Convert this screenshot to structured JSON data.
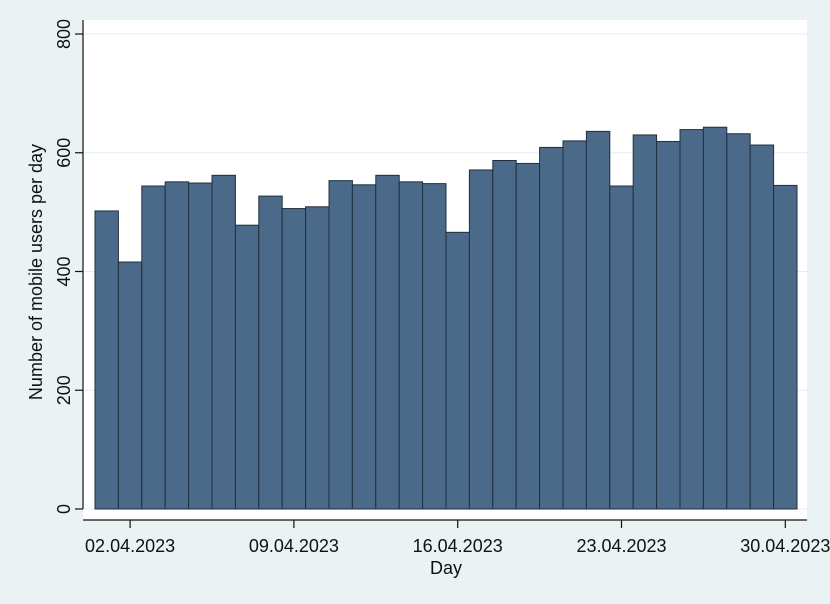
{
  "chart_data": {
    "type": "bar",
    "xlabel": "Day",
    "ylabel": "Number of mobile users per day",
    "ylim": [
      0,
      800
    ],
    "yticks": [
      0,
      200,
      400,
      600,
      800
    ],
    "xticks": [
      {
        "date": "2023-04-02",
        "label": "02.04.2023"
      },
      {
        "date": "2023-04-09",
        "label": "09.04.2023"
      },
      {
        "date": "2023-04-16",
        "label": "16.04.2023"
      },
      {
        "date": "2023-04-23",
        "label": "23.04.2023"
      },
      {
        "date": "2023-04-30",
        "label": "30.04.2023"
      }
    ],
    "grid": true,
    "bar_color": "#4b6a8a",
    "bar_edge_color": "#1f2f3f",
    "categories": [
      "2023-04-01",
      "2023-04-02",
      "2023-04-03",
      "2023-04-04",
      "2023-04-05",
      "2023-04-06",
      "2023-04-07",
      "2023-04-08",
      "2023-04-09",
      "2023-04-10",
      "2023-04-11",
      "2023-04-12",
      "2023-04-13",
      "2023-04-14",
      "2023-04-15",
      "2023-04-16",
      "2023-04-17",
      "2023-04-18",
      "2023-04-19",
      "2023-04-20",
      "2023-04-21",
      "2023-04-22",
      "2023-04-23",
      "2023-04-24",
      "2023-04-25",
      "2023-04-26",
      "2023-04-27",
      "2023-04-28",
      "2023-04-29",
      "2023-04-30"
    ],
    "values": [
      502,
      416,
      544,
      551,
      549,
      562,
      478,
      527,
      506,
      509,
      553,
      546,
      562,
      551,
      548,
      466,
      571,
      587,
      582,
      609,
      620,
      636,
      544,
      630,
      619,
      639,
      643,
      632,
      613,
      545
    ]
  }
}
